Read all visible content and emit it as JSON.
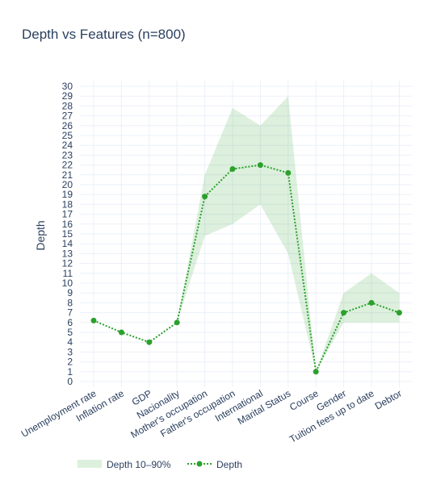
{
  "chart_data": {
    "type": "line",
    "title": "Depth vs Features (n=800)",
    "xlabel": "",
    "ylabel": "Depth",
    "ylim": [
      0,
      30
    ],
    "grid": true,
    "legend_position": "bottom-left",
    "categories": [
      "Unemployment rate",
      "Inflation rate",
      "GDP",
      "Nacionality",
      "Mother's occupation",
      "Father's occupation",
      "International",
      "Marital Status",
      "Course",
      "Gender",
      "Tuition fees up to date",
      "Debtor"
    ],
    "series": [
      {
        "name": "Depth",
        "style": "dotted line with markers",
        "values": [
          6.2,
          5,
          4,
          6,
          18.8,
          21.6,
          22,
          21.2,
          1,
          7,
          8,
          7
        ]
      }
    ],
    "band": {
      "name": "Depth 10–90%",
      "lower": [
        6.2,
        5,
        4,
        6,
        14.8,
        16,
        18,
        13,
        1,
        6,
        6,
        6
      ],
      "upper": [
        6.2,
        5,
        4,
        6,
        21,
        27.8,
        26,
        29,
        1,
        9,
        11,
        9
      ]
    },
    "colors": {
      "line": "#2ca02c",
      "band": "rgba(44,160,44,0.16)",
      "grid": "#ebf0f8",
      "text": "#2a3f5f"
    }
  }
}
